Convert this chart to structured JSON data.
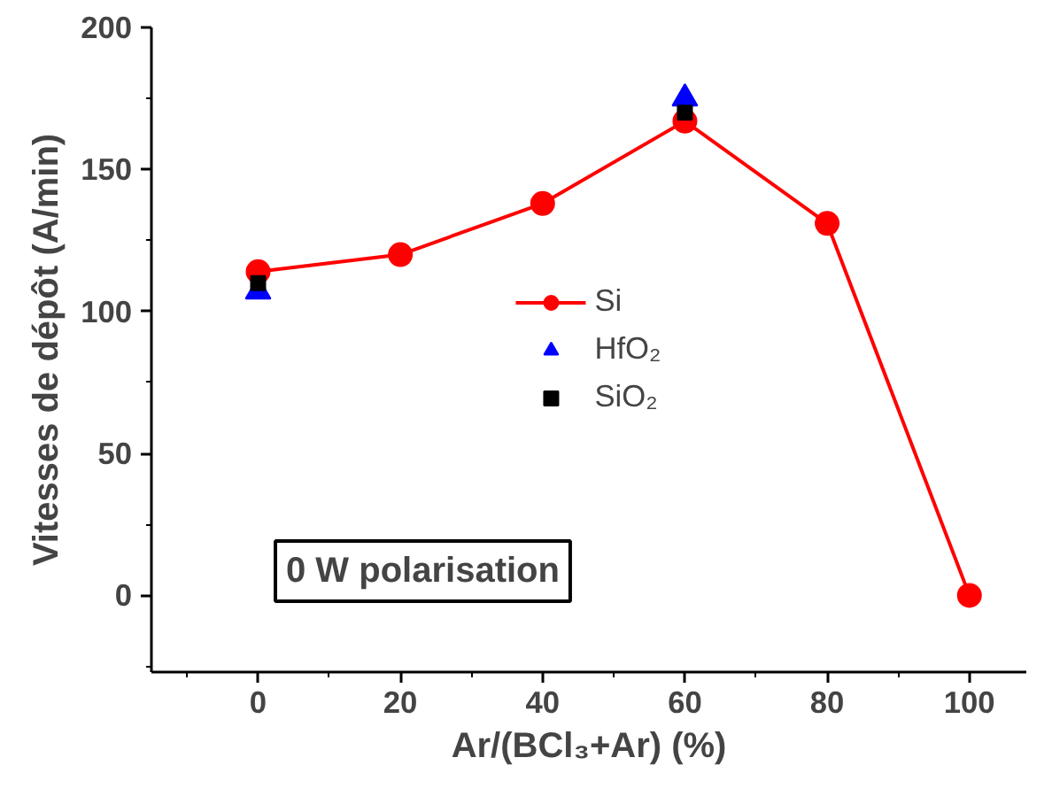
{
  "chart_data": {
    "type": "line",
    "xlabel": "Ar/(BCl₃+Ar) (%)",
    "ylabel": "Vitesses de dépôt (A/min)",
    "x": [
      0,
      20,
      40,
      60,
      80,
      100
    ],
    "series": [
      {
        "name": "Si",
        "marker": "circle",
        "color": "#ff0000",
        "values": [
          114,
          120,
          138,
          167,
          131,
          0
        ]
      },
      {
        "name": "HfO₂",
        "type": "scatter",
        "marker": "triangle",
        "color": "#0000ff",
        "values": [
          107,
          null,
          null,
          175,
          null,
          null
        ]
      },
      {
        "name": "SiO₂",
        "type": "scatter",
        "marker": "square",
        "color": "#000000",
        "values": [
          110,
          null,
          null,
          170,
          null,
          null
        ]
      }
    ],
    "xlim": [
      -15,
      108
    ],
    "ylim": [
      -27,
      200
    ],
    "xticks": [
      0,
      20,
      40,
      60,
      80,
      100
    ],
    "yticks": [
      0,
      50,
      100,
      150,
      200
    ],
    "grid": false,
    "legend": "center",
    "annotations": [
      "0 W polarisation"
    ]
  }
}
